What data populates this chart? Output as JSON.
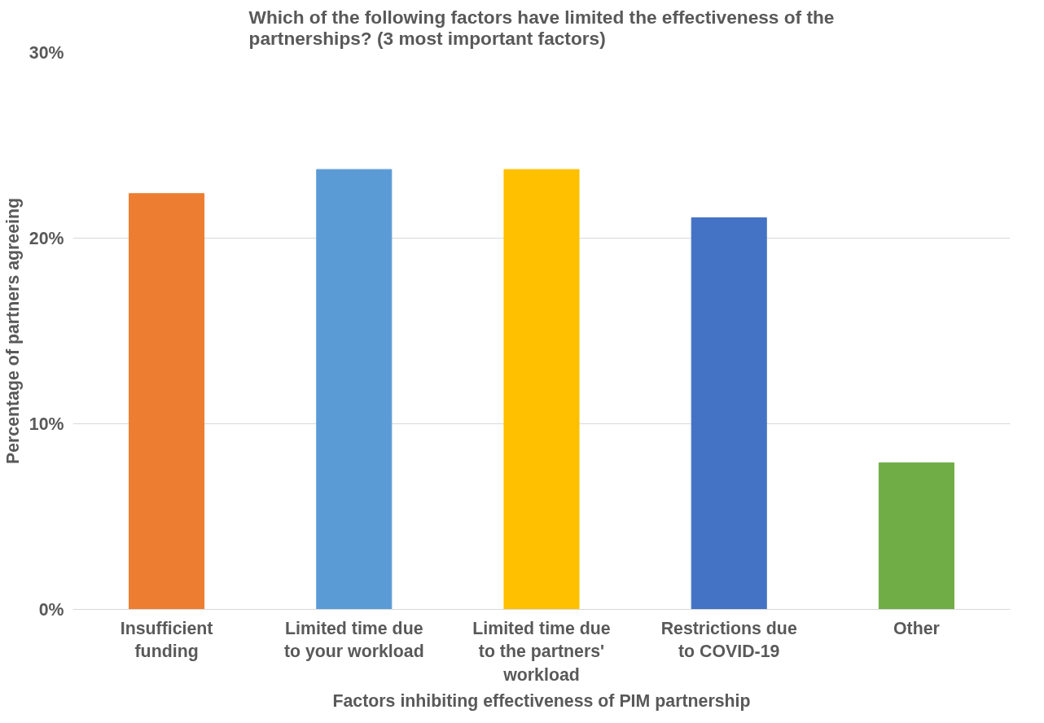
{
  "chart_data": {
    "type": "bar",
    "title": "Which of the following factors have limited the effectiveness of the partnerships? (3 most important factors)",
    "xlabel": "Factors inhibiting effectiveness of PIM partnership",
    "ylabel": "Percentage of partners agreeing",
    "categories": [
      "Insufficient funding",
      "Limited time due to your workload",
      "Limited time due to the partners' workload",
      "Restrictions due to COVID-19",
      "Other"
    ],
    "values": [
      22.4,
      23.7,
      23.7,
      21.1,
      7.9
    ],
    "colors": [
      "#ed7d31",
      "#5b9bd5",
      "#ffc000",
      "#4472c4",
      "#70ad47"
    ],
    "ylim": [
      0,
      30
    ],
    "yticks": [
      {
        "value": 0,
        "label": "0%"
      },
      {
        "value": 10,
        "label": "10%"
      },
      {
        "value": 20,
        "label": "20%"
      },
      {
        "value": 30,
        "label": "30%"
      }
    ],
    "grid": "y"
  }
}
